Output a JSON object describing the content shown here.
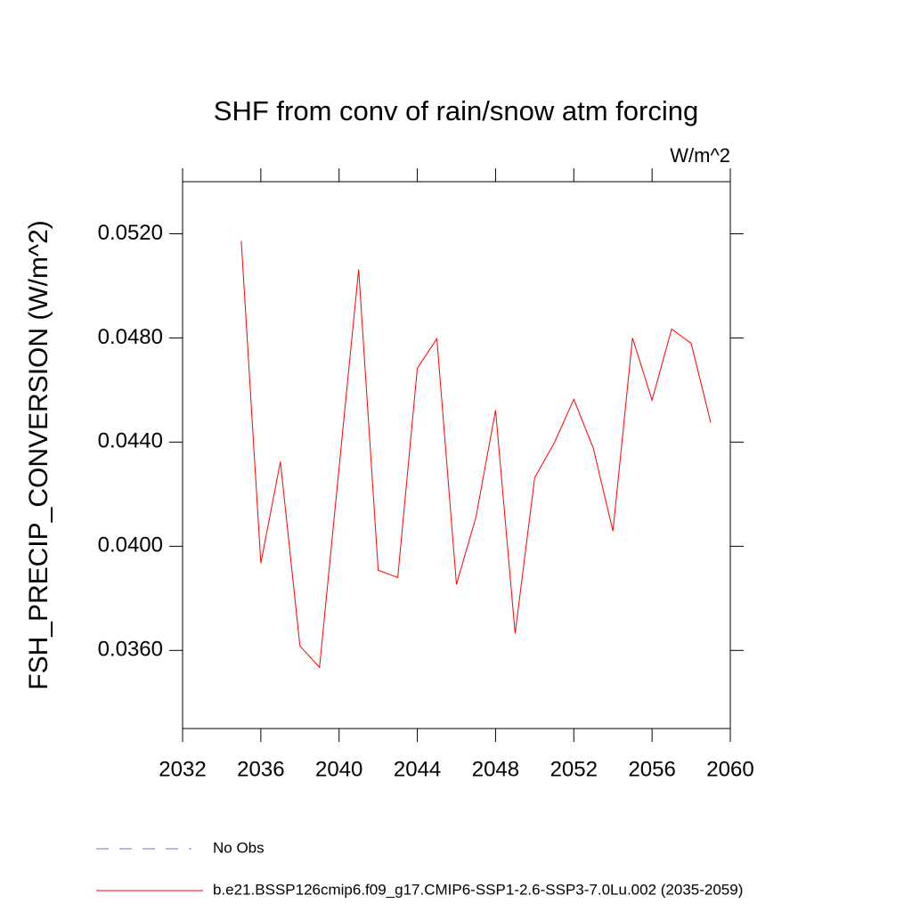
{
  "chart_data": {
    "type": "line",
    "title": "SHF from conv of rain/snow atm forcing",
    "units": "W/m^2",
    "ylabel": "FSH_PRECIP_CONVERSION  (W/m^2)",
    "x": [
      2035,
      2036,
      2037,
      2038,
      2039,
      2040,
      2041,
      2042,
      2043,
      2044,
      2045,
      2046,
      2047,
      2048,
      2049,
      2050,
      2051,
      2052,
      2053,
      2054,
      2055,
      2056,
      2057,
      2058,
      2059
    ],
    "series": [
      {
        "name": "b.e21.BSSP126cmip6.f09_g17.CMIP6-SSP1-2.6-SSP3-7.0Lu.002 (2035-2059)",
        "color": "#ff0000",
        "values": [
          0.05173,
          0.03935,
          0.04325,
          0.03617,
          0.03535,
          0.04301,
          0.05063,
          0.03908,
          0.0388,
          0.04684,
          0.04797,
          0.03853,
          0.04113,
          0.04523,
          0.03665,
          0.04263,
          0.04397,
          0.04564,
          0.04376,
          0.04058,
          0.048,
          0.04561,
          0.04834,
          0.04779,
          0.04475
        ]
      }
    ],
    "extra_legend": {
      "name": "No Obs",
      "color": "#7b68c8",
      "style": "dashed"
    },
    "xlim": [
      2032,
      2060
    ],
    "xticks": [
      2032,
      2036,
      2040,
      2044,
      2048,
      2052,
      2056,
      2060
    ],
    "ylim": [
      0.033,
      0.054
    ],
    "yticks": [
      {
        "value": 0.036,
        "label": "0.0360"
      },
      {
        "value": 0.04,
        "label": "0.0400"
      },
      {
        "value": 0.044,
        "label": "0.0440"
      },
      {
        "value": 0.048,
        "label": "0.0480"
      },
      {
        "value": 0.052,
        "label": "0.0520"
      }
    ],
    "grid": false
  }
}
